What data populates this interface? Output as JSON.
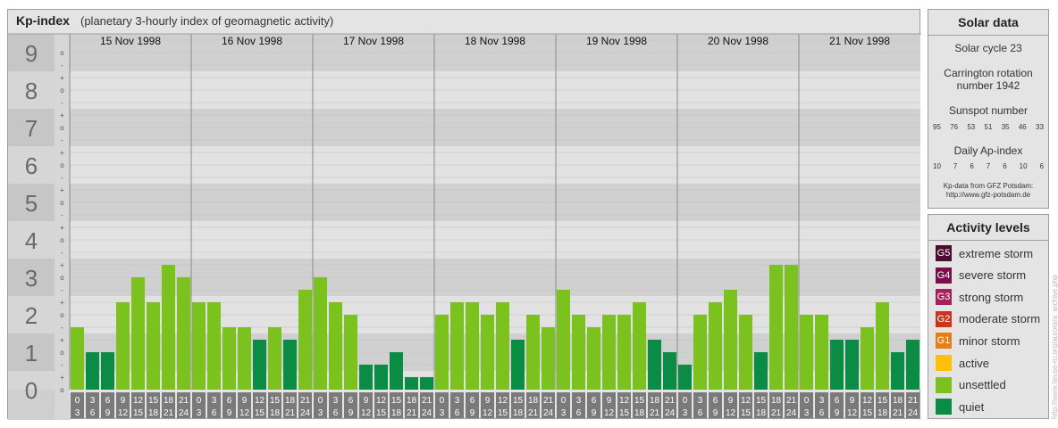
{
  "header": {
    "title": "Kp-index",
    "subtitle": "(planetary 3-hourly index of geomagnetic activity)"
  },
  "chart_data": {
    "type": "bar",
    "title": "Kp-index",
    "subtitle": "(planetary 3-hourly index of geomagnetic activity)",
    "ylim": [
      0,
      9
    ],
    "y_ticks": [
      "0",
      "1",
      "2",
      "3",
      "4",
      "5",
      "6",
      "7",
      "8",
      "9"
    ],
    "y_minor_labels": [
      "o",
      "+",
      "-",
      "o",
      "+",
      "-",
      "o",
      "+",
      "-",
      "o",
      "+",
      "-",
      "o",
      "+",
      "-",
      "o",
      "+",
      "-",
      "o",
      "+",
      "-",
      "o",
      "+",
      "-",
      "o",
      "+",
      "-",
      "o"
    ],
    "days": [
      "15 Nov 1998",
      "16 Nov 1998",
      "17 Nov 1998",
      "18 Nov 1998",
      "19 Nov 1998",
      "20 Nov 1998",
      "21 Nov 1998"
    ],
    "interval_start": [
      "0",
      "3",
      "6",
      "9",
      "12",
      "15",
      "18",
      "21"
    ],
    "interval_end": [
      "3",
      "6",
      "9",
      "12",
      "15",
      "18",
      "21",
      "24"
    ],
    "values": [
      [
        1.667,
        1.0,
        1.0,
        2.333,
        3.0,
        2.333,
        3.333,
        3.0
      ],
      [
        2.333,
        2.333,
        1.667,
        1.667,
        1.333,
        1.667,
        1.333,
        2.667
      ],
      [
        3.0,
        2.333,
        2.0,
        0.667,
        0.667,
        1.0,
        0.333,
        0.333
      ],
      [
        2.0,
        2.333,
        2.333,
        2.0,
        2.333,
        1.333,
        2.0,
        1.667
      ],
      [
        2.667,
        2.0,
        1.667,
        2.0,
        2.0,
        2.333,
        1.333,
        1.0
      ],
      [
        0.667,
        2.0,
        2.333,
        2.667,
        2.0,
        1.0,
        3.333,
        3.333
      ],
      [
        2.0,
        2.0,
        1.333,
        1.333,
        1.667,
        2.333,
        1.0,
        1.333
      ]
    ],
    "colors": {
      "quiet": "#0a8c45",
      "unsettled": "#7cc21f"
    }
  },
  "solar": {
    "title": "Solar data",
    "cycle": "Solar cycle 23",
    "carrington_line1": "Carrington rotation",
    "carrington_line2": "number 1942",
    "sunspot_label": "Sunspot number",
    "sunspot_values": [
      "95",
      "76",
      "53",
      "51",
      "35",
      "46",
      "33"
    ],
    "ap_label": "Daily Ap-index",
    "ap_values": [
      "10",
      "7",
      "6",
      "7",
      "6",
      "10",
      "6"
    ],
    "source_line1": "Kp-data from GFZ Potsdam:",
    "source_line2": "http://www.gfz-potsdam.de"
  },
  "activity": {
    "title": "Activity levels",
    "levels": [
      {
        "code": "G5",
        "label": "extreme storm",
        "color": "#4a0d2d"
      },
      {
        "code": "G4",
        "label": "severe storm",
        "color": "#7a0f4a"
      },
      {
        "code": "G3",
        "label": "strong storm",
        "color": "#a8205a"
      },
      {
        "code": "G2",
        "label": "moderate storm",
        "color": "#c6351c"
      },
      {
        "code": "G1",
        "label": "minor storm",
        "color": "#e87e14"
      },
      {
        "code": "",
        "label": "active",
        "color": "#ffc107"
      },
      {
        "code": "",
        "label": "unsettled",
        "color": "#7cc21f"
      },
      {
        "code": "",
        "label": "quiet",
        "color": "#0a8c45"
      }
    ]
  },
  "watermark": "http://www.tieuse-ru.org/aurora/a_archive.php"
}
